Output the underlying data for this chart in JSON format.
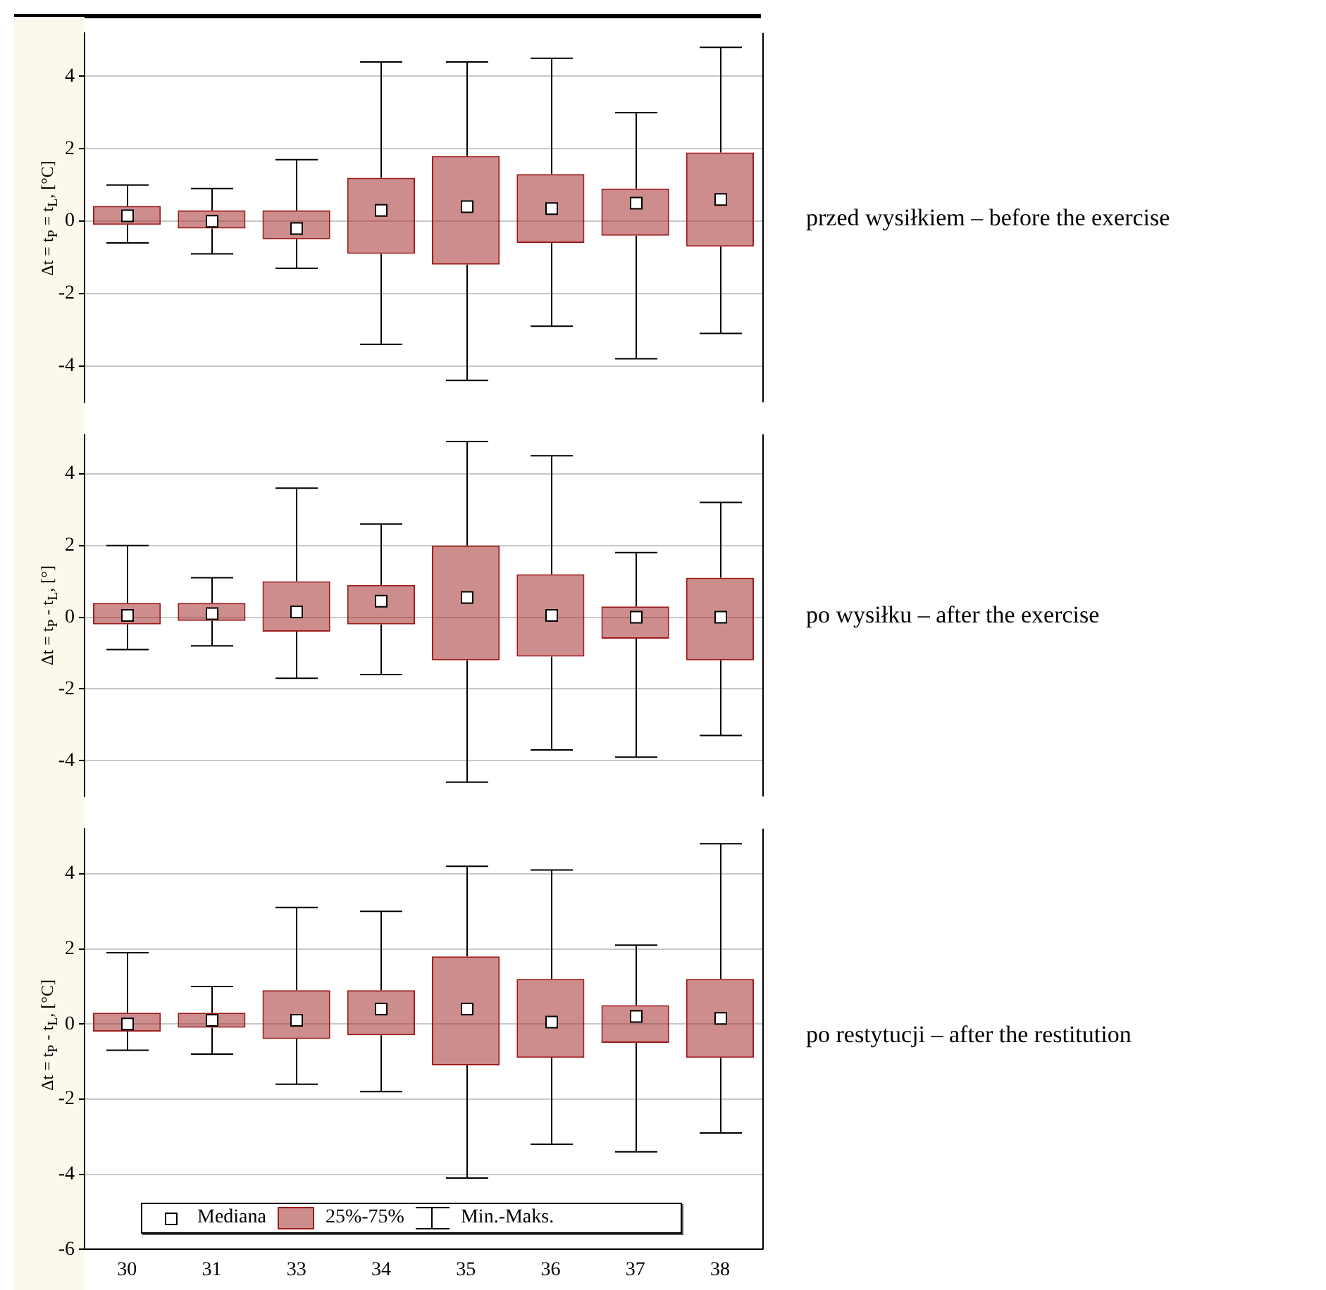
{
  "chart_data": [
    {
      "type": "box",
      "annotations": [
        "przed wysiłkiem – before the exercise"
      ],
      "ylabel": "Δt = t$_{P}$ = t$_{L}$, [°C]",
      "categories": [
        "30",
        "31",
        "33",
        "34",
        "35",
        "36",
        "37",
        "38"
      ],
      "color": "#9e1b1b",
      "marker": "square",
      "grid": "y",
      "tick_labels": "y",
      "ylim": [
        -5,
        5.2
      ],
      "yticks": [
        -4,
        -2,
        0,
        2,
        4
      ],
      "boxes": [
        {
          "low": -0.6,
          "q1": -0.1,
          "median": 0.15,
          "q3": 0.42,
          "high": 1.0
        },
        {
          "low": -0.9,
          "q1": -0.2,
          "median": 0,
          "q3": 0.3,
          "high": 0.9
        },
        {
          "low": -1.3,
          "q1": -0.5,
          "median": -0.2,
          "q3": 0.3,
          "high": 1.7
        },
        {
          "low": -3.4,
          "q1": -0.9,
          "median": 0.3,
          "q3": 1.2,
          "high": 4.4
        },
        {
          "low": -4.4,
          "q1": -1.2,
          "median": 0.4,
          "q3": 1.8,
          "high": 4.4
        },
        {
          "low": -2.9,
          "q1": -0.6,
          "median": 0.35,
          "q3": 1.3,
          "high": 4.5
        },
        {
          "low": -3.8,
          "q1": -0.4,
          "median": 0.5,
          "q3": 0.9,
          "high": 3.0
        },
        {
          "low": -3.1,
          "q1": -0.7,
          "median": 0.6,
          "q3": 1.9,
          "high": 4.8
        }
      ]
    },
    {
      "type": "box",
      "annotations": [
        "po wysiłku – after the exercise"
      ],
      "ylabel": "Δt = t$_{P}$ - t$_{L}$, [°]",
      "categories": [
        "30",
        "31",
        "33",
        "34",
        "35",
        "36",
        "37",
        "38"
      ],
      "color": "#9e1b1b",
      "marker": "square",
      "grid": "y",
      "tick_labels": "y",
      "ylim": [
        -5,
        5.1
      ],
      "yticks": [
        -4,
        -2,
        0,
        2,
        4
      ],
      "boxes": [
        {
          "low": -0.9,
          "q1": -0.2,
          "median": 0.05,
          "q3": 0.4,
          "high": 2.0
        },
        {
          "low": -0.8,
          "q1": -0.1,
          "median": 0.1,
          "q3": 0.4,
          "high": 1.1
        },
        {
          "low": -1.7,
          "q1": -0.4,
          "median": 0.15,
          "q3": 1.0,
          "high": 3.6
        },
        {
          "low": -1.6,
          "q1": -0.2,
          "median": 0.45,
          "q3": 0.9,
          "high": 2.6
        },
        {
          "low": -4.6,
          "q1": -1.2,
          "median": 0.55,
          "q3": 2.0,
          "high": 4.9
        },
        {
          "low": -3.7,
          "q1": -1.1,
          "median": 0.05,
          "q3": 1.2,
          "high": 4.5
        },
        {
          "low": -3.9,
          "q1": -0.6,
          "median": 0,
          "q3": 0.3,
          "high": 1.8
        },
        {
          "low": -3.3,
          "q1": -1.2,
          "median": 0,
          "q3": 1.1,
          "high": 3.2
        }
      ]
    },
    {
      "type": "box",
      "annotations": [
        "po restytucji – after the restitution",
        "Mediana",
        "25%-75%",
        "Min.-Maks."
      ],
      "ylabel": "Δt = t$_{P}$ - t$_{L}$, [°C]",
      "categories": [
        "30",
        "31",
        "33",
        "34",
        "35",
        "36",
        "37",
        "38"
      ],
      "color": "#9e1b1b",
      "marker": "square",
      "grid": "y",
      "ylim": [
        -6,
        5.2
      ],
      "yticks": [
        -6,
        -4,
        -2,
        0,
        2,
        4
      ],
      "boxes": [
        {
          "low": -0.7,
          "q1": -0.2,
          "median": 0,
          "q3": 0.3,
          "high": 1.9
        },
        {
          "low": -0.8,
          "q1": -0.1,
          "median": 0.1,
          "q3": 0.3,
          "high": 1.0
        },
        {
          "low": -1.6,
          "q1": -0.4,
          "median": 0.1,
          "q3": 0.9,
          "high": 3.1
        },
        {
          "low": -1.8,
          "q1": -0.3,
          "median": 0.4,
          "q3": 0.9,
          "high": 3.0
        },
        {
          "low": -4.1,
          "q1": -1.1,
          "median": 0.4,
          "q3": 1.8,
          "high": 4.2
        },
        {
          "low": -3.2,
          "q1": -0.9,
          "median": 0.05,
          "q3": 1.2,
          "high": 4.1
        },
        {
          "low": -3.4,
          "q1": -0.5,
          "median": 0.2,
          "q3": 0.5,
          "high": 2.1
        },
        {
          "low": -2.9,
          "q1": -0.9,
          "median": 0.15,
          "q3": 1.2,
          "high": 4.8
        }
      ]
    }
  ]
}
